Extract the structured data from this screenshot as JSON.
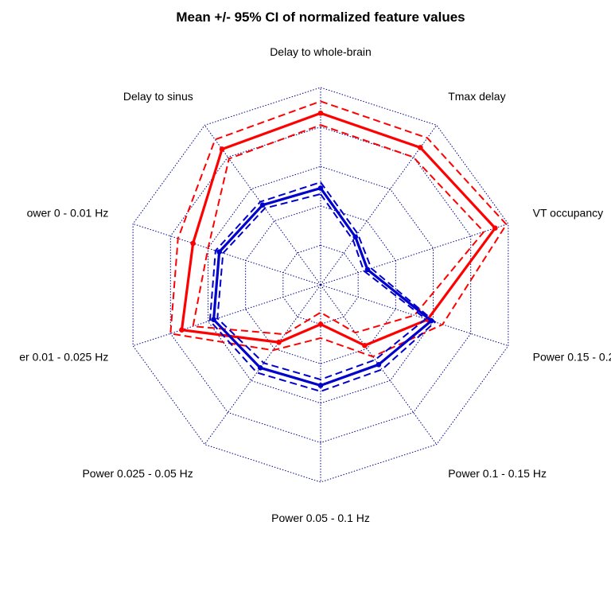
{
  "chart_data": {
    "type": "radar",
    "title": "Mean +/- 95% CI of normalized feature values",
    "axes": [
      "Delay to whole-brain",
      "Tmax delay",
      "VT occupancy",
      "Power 0.15 - 0.2",
      "Power 0.1 - 0.15 Hz",
      "Power 0.05 - 0.1 Hz",
      "Power 0.025 - 0.05 Hz",
      "er 0.01 - 0.025 Hz",
      "ower 0 - 0.01 Hz",
      "Delay to sinus"
    ],
    "range": [
      0,
      1
    ],
    "grid_levels": 5,
    "series": [
      {
        "color": "#ff0000",
        "mean": [
          0.87,
          0.86,
          0.93,
          0.57,
          0.38,
          0.2,
          0.36,
          0.74,
          0.68,
          0.85
        ],
        "upper": [
          0.93,
          0.92,
          0.99,
          0.65,
          0.45,
          0.27,
          0.41,
          0.8,
          0.76,
          0.91
        ],
        "lower": [
          0.81,
          0.8,
          0.87,
          0.5,
          0.3,
          0.14,
          0.31,
          0.68,
          0.6,
          0.79
        ]
      },
      {
        "color": "#0000cd",
        "mean": [
          0.49,
          0.3,
          0.25,
          0.59,
          0.5,
          0.51,
          0.52,
          0.57,
          0.54,
          0.5
        ],
        "upper": [
          0.52,
          0.32,
          0.27,
          0.61,
          0.53,
          0.54,
          0.55,
          0.59,
          0.56,
          0.52
        ],
        "lower": [
          0.46,
          0.28,
          0.23,
          0.56,
          0.47,
          0.48,
          0.49,
          0.55,
          0.52,
          0.48
        ]
      }
    ]
  }
}
